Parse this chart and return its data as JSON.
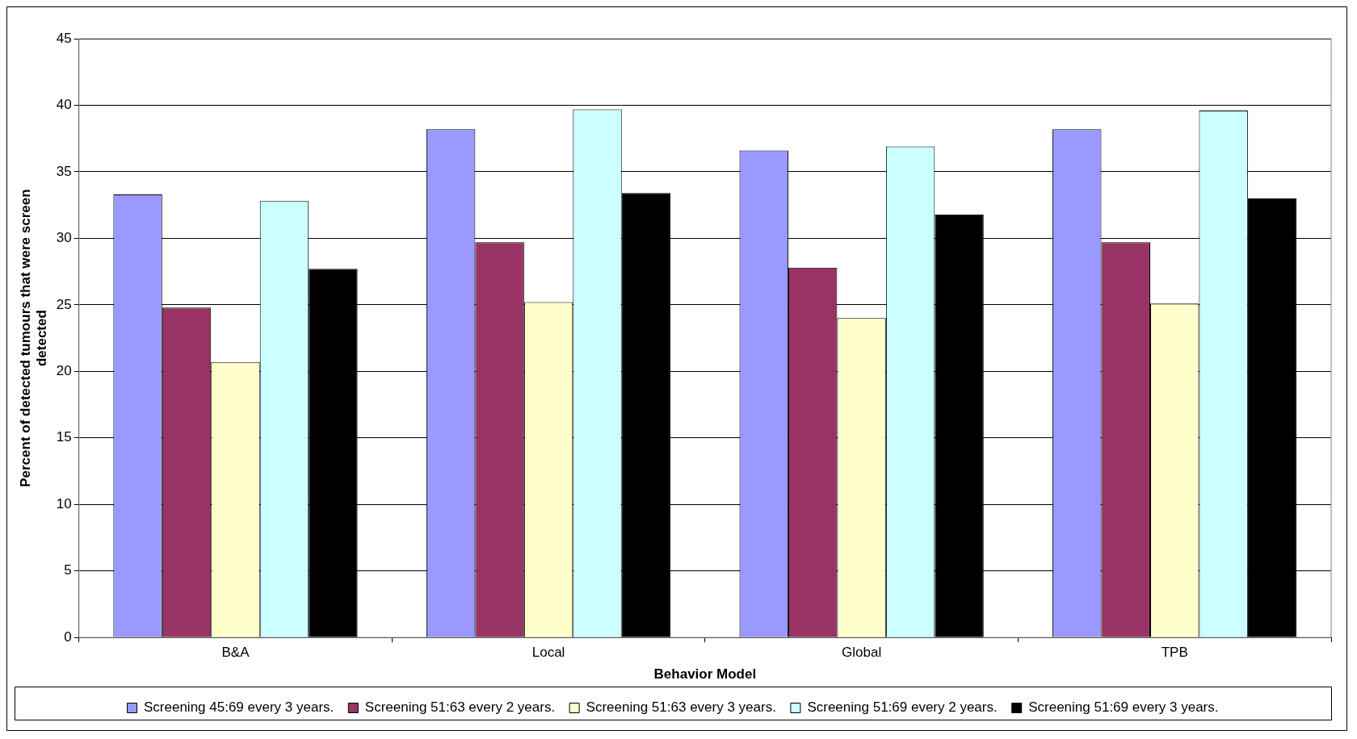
{
  "chart_data": {
    "type": "bar",
    "xlabel": "Behavior Model",
    "ylabel": "Percent of detected tumours that were screen detected",
    "categories": [
      "B&A",
      "Local",
      "Global",
      "TPB"
    ],
    "series": [
      {
        "name": "Screening 45:69 every 3 years.",
        "color": "#9999ff",
        "values": [
          33.3,
          38.2,
          36.6,
          38.2
        ]
      },
      {
        "name": "Screening 51:63 every 2 years.",
        "color": "#993366",
        "values": [
          24.8,
          29.7,
          27.8,
          29.7
        ]
      },
      {
        "name": "Screening 51:63 every 3 years.",
        "color": "#ffffcc",
        "values": [
          20.7,
          25.2,
          24.0,
          25.1
        ]
      },
      {
        "name": "Screening 51:69 every 2 years.",
        "color": "#ccffff",
        "values": [
          32.8,
          39.7,
          36.9,
          39.6
        ]
      },
      {
        "name": "Screening 51:69 every 3 years.",
        "color": "#000000",
        "values": [
          27.7,
          33.4,
          31.8,
          33.0
        ]
      }
    ],
    "ylim": [
      0,
      45
    ],
    "yticks": [
      0,
      5,
      10,
      15,
      20,
      25,
      30,
      35,
      40,
      45
    ],
    "grid": "y",
    "legend": "bottom"
  }
}
